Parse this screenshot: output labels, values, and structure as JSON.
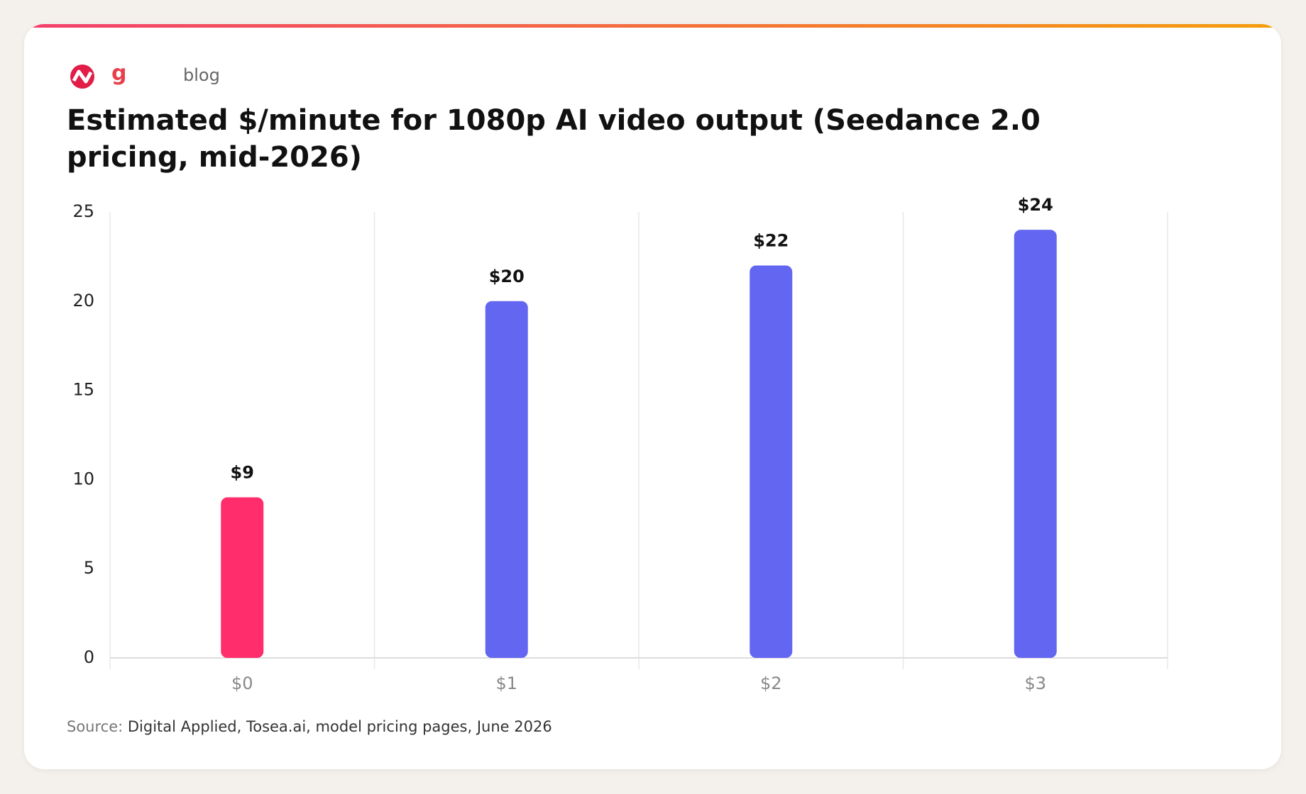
{
  "header": {
    "logo": "g",
    "nav": "blog"
  },
  "chart_data": {
    "type": "bar",
    "title": "Estimated $/minute for 1080p AI video output (Seedance 2.0 pricing, mid-2026)",
    "categories": [
      "$0",
      "$1",
      "$2",
      "$3"
    ],
    "values": [
      9,
      20,
      22,
      24
    ],
    "value_labels": [
      "$9",
      "$20",
      "$22",
      "$24"
    ],
    "colors": [
      "#ff2d6b",
      "#6366f1",
      "#6366f1",
      "#6366f1"
    ],
    "ylim": [
      0,
      25
    ],
    "yticks": [
      0,
      5,
      10,
      15,
      20,
      25
    ],
    "grid": true
  },
  "source": {
    "label": "Source:",
    "text": "Digital Applied, Tosea.ai, model pricing pages, June 2026"
  }
}
